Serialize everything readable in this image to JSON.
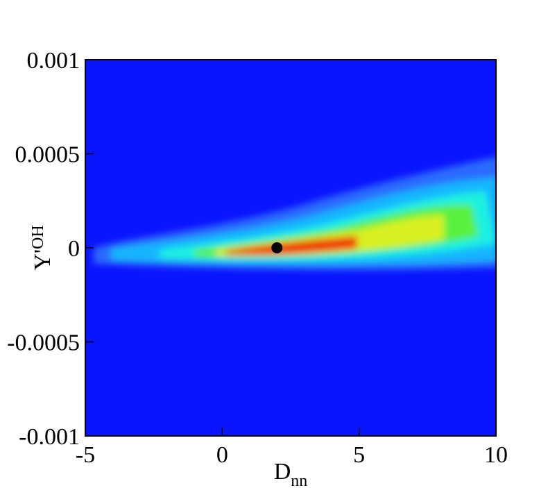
{
  "chart_data": {
    "type": "contour",
    "xlabel": "D",
    "xlabel_sub": "nn",
    "ylabel": "Y'",
    "ylabel_sub": "OH",
    "xlim": [
      -5,
      10
    ],
    "xticks": [
      -5,
      0,
      5,
      10
    ],
    "ylim": [
      -0.001,
      0.001
    ],
    "yticks": [
      -0.001,
      -0.0005,
      0,
      0.0005,
      0.001
    ],
    "marker": {
      "x": 2,
      "y": 0,
      "color": "#000000"
    },
    "background_color": "#0a14ff"
  }
}
